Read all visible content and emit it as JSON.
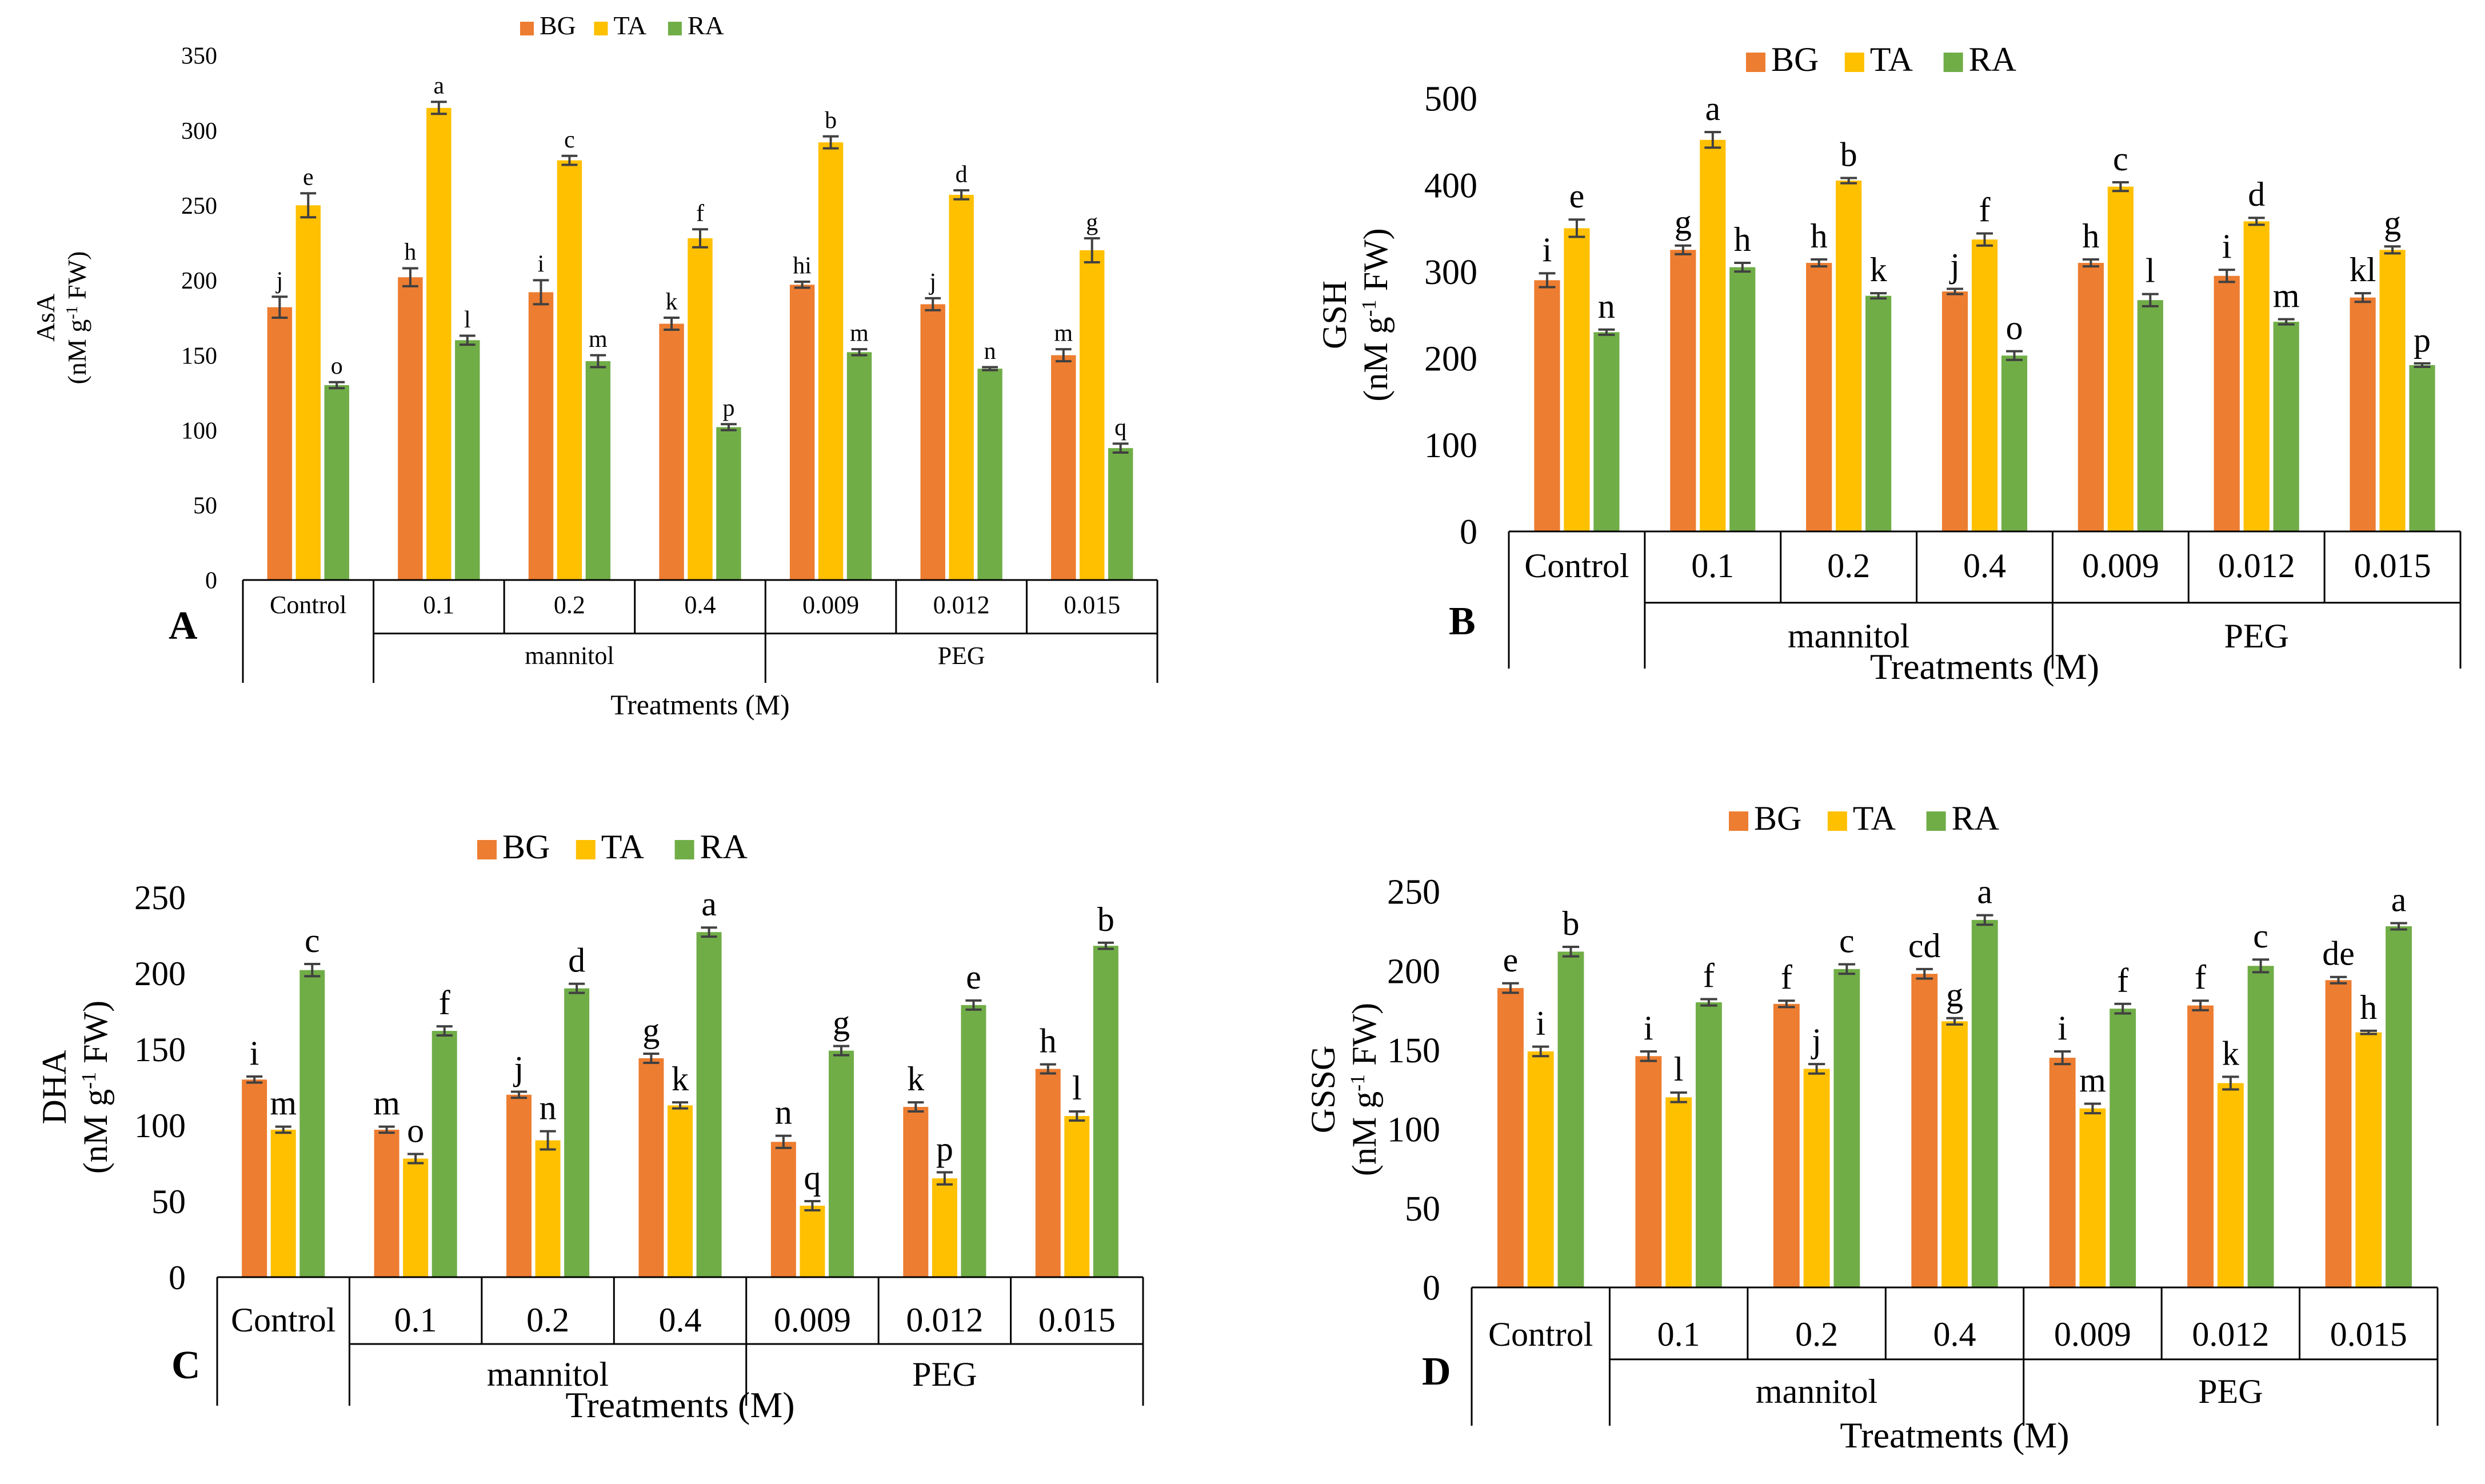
{
  "colors": {
    "BG": "#ED7D31",
    "TA": "#FFC000",
    "RA": "#70AD47",
    "error_bar": "#404040",
    "axis": "#000000"
  },
  "chart_data": [
    {
      "type": "bar",
      "panel_label": "A",
      "ylabel_line1": "AsA",
      "ylabel_prefix": "(nM g",
      "ylabel_sup": "-1",
      "ylabel_suffix": " FW)",
      "xlabel": "Treatments (M)",
      "ylim": [
        0,
        350
      ],
      "yticks": [
        0,
        50,
        100,
        150,
        200,
        250,
        300,
        350
      ],
      "legend": [
        "BG",
        "TA",
        "RA"
      ],
      "categories": [
        "Control",
        "0.1",
        "0.2",
        "0.4",
        "0.009",
        "0.012",
        "0.015"
      ],
      "groups": [
        {
          "label": "mannitol",
          "from": 1,
          "to": 3
        },
        {
          "label": "PEG",
          "from": 4,
          "to": 6
        }
      ],
      "series": [
        {
          "name": "BG",
          "values": [
            182,
            202,
            192,
            171,
            197,
            184,
            150
          ],
          "errors": [
            7,
            6,
            8,
            4,
            2,
            4,
            4
          ],
          "letters": [
            "j",
            "h",
            "i",
            "k",
            "hi",
            "j",
            "m"
          ]
        },
        {
          "name": "TA",
          "values": [
            250,
            315,
            280,
            228,
            292,
            257,
            220
          ],
          "errors": [
            8,
            4,
            3,
            6,
            4,
            3,
            8
          ],
          "letters": [
            "e",
            "a",
            "c",
            "f",
            "b",
            "d",
            "g"
          ]
        },
        {
          "name": "RA",
          "values": [
            130,
            160,
            146,
            102,
            152,
            141,
            88
          ],
          "errors": [
            2,
            3,
            4,
            2,
            2,
            1,
            3
          ],
          "letters": [
            "o",
            "l",
            "m",
            "p",
            "m",
            "n",
            "q"
          ]
        }
      ]
    },
    {
      "type": "bar",
      "panel_label": "B",
      "ylabel_line1": "GSH",
      "ylabel_prefix": "(nM g",
      "ylabel_sup": "-1",
      "ylabel_suffix": " FW)",
      "xlabel": "Treatments (M)",
      "ylim": [
        0,
        500
      ],
      "yticks": [
        0,
        100,
        200,
        300,
        400,
        500
      ],
      "legend": [
        "BG",
        "TA",
        "RA"
      ],
      "categories": [
        "Control",
        "0.1",
        "0.2",
        "0.4",
        "0.009",
        "0.012",
        "0.015"
      ],
      "groups": [
        {
          "label": "mannitol",
          "from": 1,
          "to": 3
        },
        {
          "label": "PEG",
          "from": 4,
          "to": 6
        }
      ],
      "series": [
        {
          "name": "BG",
          "values": [
            290,
            325,
            310,
            277,
            310,
            295,
            270
          ],
          "errors": [
            8,
            5,
            4,
            3,
            4,
            7,
            5
          ],
          "letters": [
            "i",
            "g",
            "h",
            "j",
            "h",
            "i",
            "kl"
          ]
        },
        {
          "name": "TA",
          "values": [
            350,
            452,
            405,
            337,
            398,
            358,
            325
          ],
          "errors": [
            10,
            9,
            3,
            7,
            5,
            4,
            4
          ],
          "letters": [
            "e",
            "a",
            "b",
            "f",
            "c",
            "d",
            "g"
          ]
        },
        {
          "name": "RA",
          "values": [
            230,
            305,
            272,
            203,
            267,
            242,
            192
          ],
          "errors": [
            3,
            5,
            3,
            5,
            7,
            3,
            2
          ],
          "letters": [
            "n",
            "h",
            "k",
            "o",
            "l",
            "m",
            "p"
          ]
        }
      ]
    },
    {
      "type": "bar",
      "panel_label": "C",
      "ylabel_line1": "DHA",
      "ylabel_prefix": "(nM g",
      "ylabel_sup": "-1",
      "ylabel_suffix": " FW)",
      "xlabel": "Treatments (M)",
      "ylim": [
        0,
        250
      ],
      "yticks": [
        0,
        50,
        100,
        150,
        200,
        250
      ],
      "legend": [
        "BG",
        "TA",
        "RA"
      ],
      "categories": [
        "Control",
        "0.1",
        "0.2",
        "0.4",
        "0.009",
        "0.012",
        "0.015"
      ],
      "groups": [
        {
          "label": "mannitol",
          "from": 1,
          "to": 3
        },
        {
          "label": "PEG",
          "from": 4,
          "to": 6
        }
      ],
      "series": [
        {
          "name": "BG",
          "values": [
            130,
            97,
            120,
            144,
            89,
            112,
            137
          ],
          "errors": [
            2,
            2,
            2,
            3,
            4,
            3,
            3
          ],
          "letters": [
            "i",
            "m",
            "j",
            "g",
            "n",
            "k",
            "h"
          ]
        },
        {
          "name": "TA",
          "values": [
            97,
            78,
            90,
            113,
            47,
            65,
            106
          ],
          "errors": [
            2,
            3,
            6,
            2,
            3,
            4,
            3
          ],
          "letters": [
            "m",
            "o",
            "n",
            "k",
            "q",
            "p",
            "l"
          ]
        },
        {
          "name": "RA",
          "values": [
            202,
            162,
            190,
            227,
            149,
            179,
            218
          ],
          "errors": [
            4,
            3,
            3,
            3,
            3,
            3,
            2
          ],
          "letters": [
            "c",
            "f",
            "d",
            "a",
            "g",
            "e",
            "b"
          ]
        }
      ]
    },
    {
      "type": "bar",
      "panel_label": "D",
      "ylabel_line1": "GSSG",
      "ylabel_prefix": "(nM g",
      "ylabel_sup": "-1",
      "ylabel_suffix": " FW)",
      "xlabel": "Treatments (M)",
      "ylim": [
        0,
        250
      ],
      "yticks": [
        0,
        50,
        100,
        150,
        200,
        250
      ],
      "legend": [
        "BG",
        "TA",
        "RA"
      ],
      "categories": [
        "Control",
        "0.1",
        "0.2",
        "0.4",
        "0.009",
        "0.012",
        "0.015"
      ],
      "groups": [
        {
          "label": "mannitol",
          "from": 1,
          "to": 3
        },
        {
          "label": "PEG",
          "from": 4,
          "to": 6
        }
      ],
      "series": [
        {
          "name": "BG",
          "values": [
            189,
            146,
            179,
            198,
            145,
            178,
            194
          ],
          "errors": [
            3,
            3,
            2,
            3,
            4,
            3,
            2
          ],
          "letters": [
            "e",
            "i",
            "f",
            "cd",
            "i",
            "f",
            "de"
          ]
        },
        {
          "name": "TA",
          "values": [
            149,
            120,
            138,
            168,
            113,
            129,
            161
          ],
          "errors": [
            3,
            3,
            3,
            2,
            3,
            4,
            1
          ],
          "letters": [
            "i",
            "l",
            "j",
            "g",
            "m",
            "k",
            "h"
          ]
        },
        {
          "name": "RA",
          "values": [
            212,
            180,
            201,
            232,
            176,
            203,
            228
          ],
          "errors": [
            3,
            2,
            3,
            3,
            3,
            4,
            2
          ],
          "letters": [
            "b",
            "f",
            "c",
            "a",
            "f",
            "c",
            "a"
          ]
        }
      ]
    }
  ]
}
